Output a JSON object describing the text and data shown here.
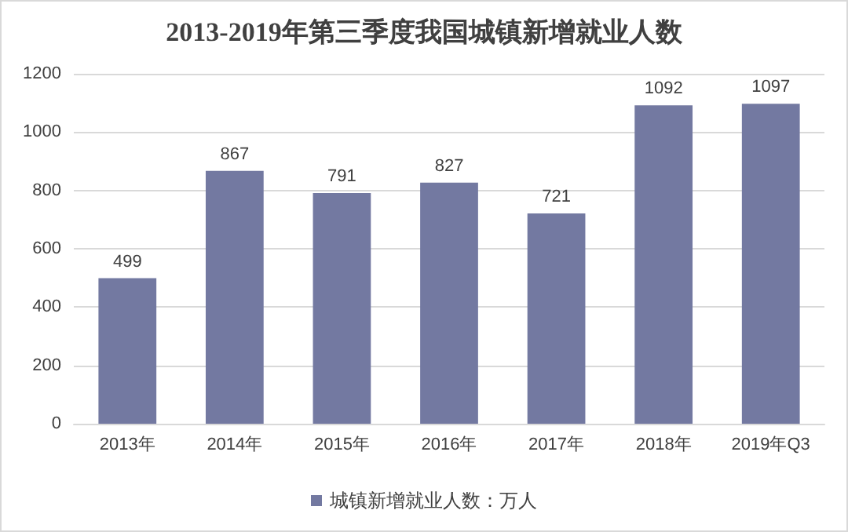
{
  "chart_data": {
    "type": "bar",
    "title": "2013-2019年第三季度我国城镇新增就业人数",
    "categories": [
      "2013年",
      "2014年",
      "2015年",
      "2016年",
      "2017年",
      "2018年",
      "2019年Q3"
    ],
    "series": [
      {
        "name": "城镇新增就业人数：万人",
        "color": "#7379a1",
        "values": [
          499,
          867,
          791,
          827,
          721,
          1092,
          1097
        ]
      }
    ],
    "ylim": [
      0,
      1200
    ],
    "yticks": [
      0,
      200,
      400,
      600,
      800,
      1000,
      1200
    ],
    "grid": "y",
    "legend": "bottom",
    "data_labels": true
  }
}
